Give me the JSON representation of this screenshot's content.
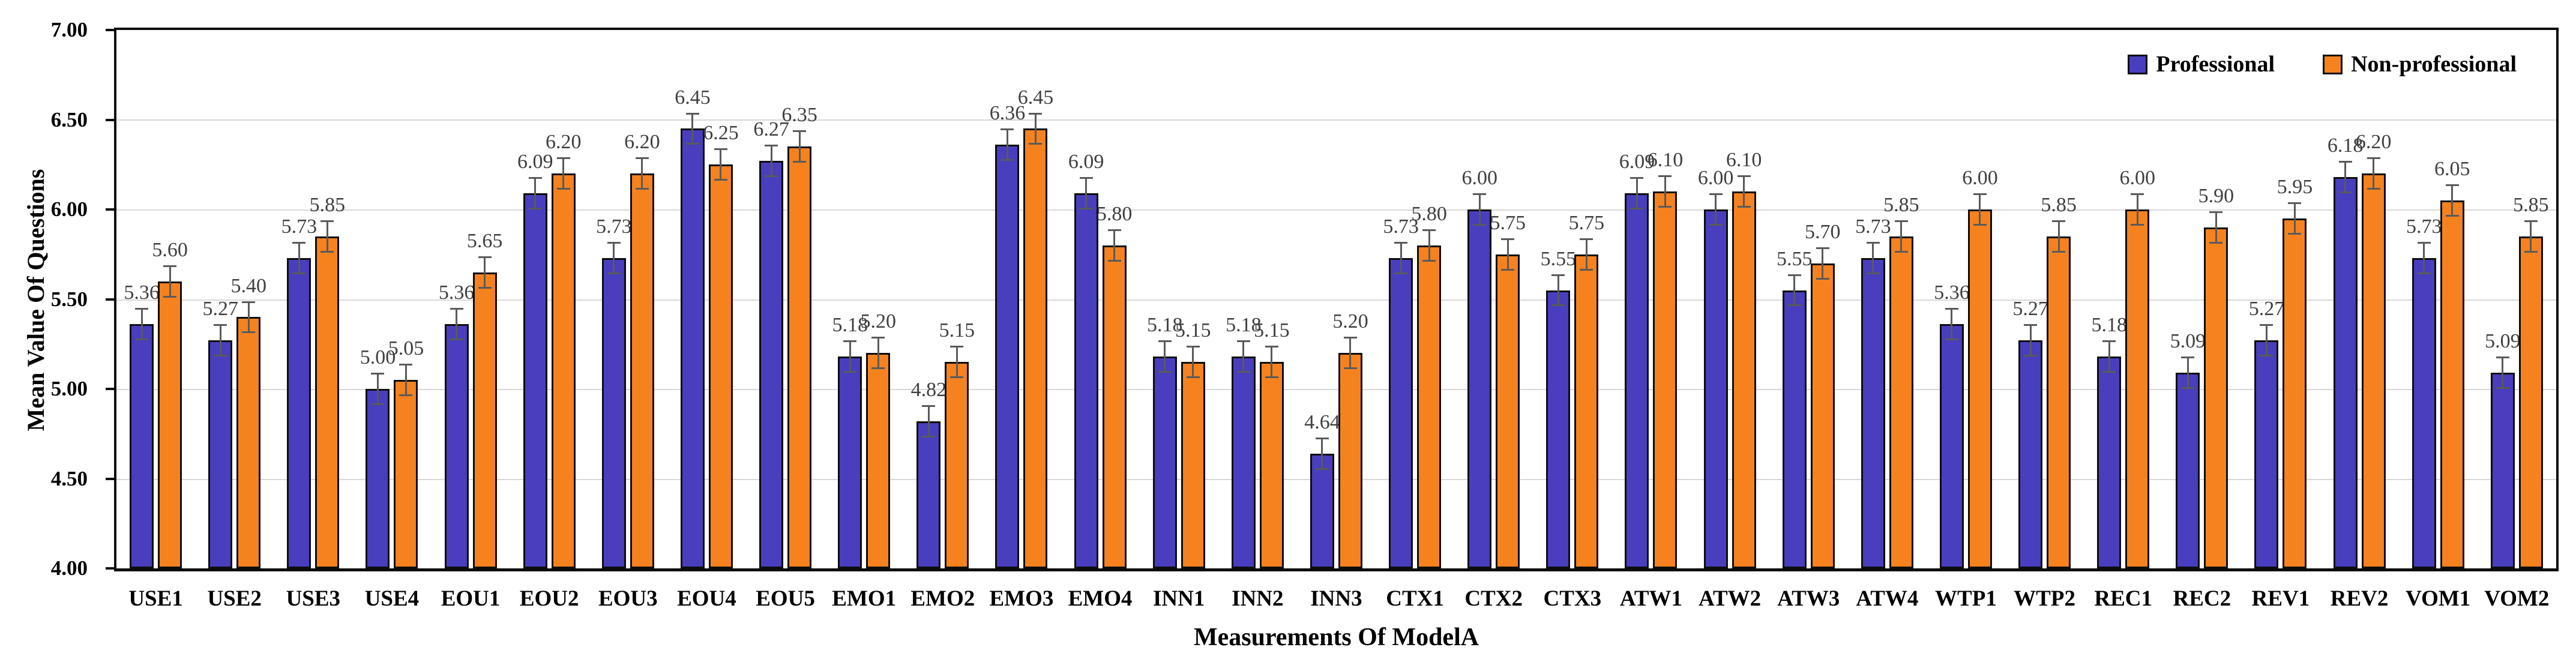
{
  "chart_data": {
    "type": "bar",
    "title": "",
    "xlabel": "Measurements Of ModelA",
    "ylabel": "Mean Value Of Questions",
    "ylim": [
      4.0,
      7.0
    ],
    "ytick_step": 0.5,
    "yticks": [
      7.0,
      6.5,
      6.0,
      5.5,
      5.0,
      4.5,
      4.0
    ],
    "ytick_labels": [
      "7.00",
      "6.50",
      "6.00",
      "5.50",
      "5.00",
      "4.50",
      "4.00"
    ],
    "grid": true,
    "legend_position": "top-right-inside",
    "error_bar_approx": 0.09,
    "categories": [
      "USE1",
      "USE2",
      "USE3",
      "USE4",
      "EOU1",
      "EOU2",
      "EOU3",
      "EOU4",
      "EOU5",
      "EMO1",
      "EMO2",
      "EMO3",
      "EMO4",
      "INN1",
      "INN2",
      "INN3",
      "CTX1",
      "CTX2",
      "CTX3",
      "ATW1",
      "ATW2",
      "ATW3",
      "ATW4",
      "WTP1",
      "WTP2",
      "REC1",
      "REC2",
      "REV1",
      "REV2",
      "VOM1",
      "VOM2"
    ],
    "series": [
      {
        "name": "Professional",
        "color": "#483EBE",
        "values": [
          5.36,
          5.27,
          5.73,
          5.0,
          5.36,
          6.09,
          5.73,
          6.45,
          6.27,
          5.18,
          4.82,
          6.36,
          6.09,
          5.18,
          5.18,
          4.64,
          5.73,
          6.0,
          5.55,
          6.09,
          6.0,
          5.55,
          5.73,
          5.36,
          5.27,
          5.18,
          5.09,
          5.27,
          6.18,
          5.73,
          5.09
        ]
      },
      {
        "name": "Non-professional",
        "color": "#F6821F",
        "values": [
          5.6,
          5.4,
          5.85,
          5.05,
          5.65,
          6.2,
          6.2,
          6.25,
          6.35,
          5.2,
          5.15,
          6.45,
          5.8,
          5.15,
          5.15,
          5.2,
          5.8,
          5.75,
          5.75,
          6.1,
          6.1,
          5.7,
          5.85,
          6.0,
          5.85,
          6.0,
          5.9,
          5.95,
          6.2,
          6.05,
          5.85
        ]
      }
    ]
  },
  "colors": {
    "professional": "#483EBE",
    "non_professional": "#F6821F",
    "bar_border": "#0D0D0D",
    "gridline": "#D8D8D8",
    "error_bar": "#5A5A5A",
    "data_label": "#3F3F3F",
    "axis": "#000000",
    "background": "#FFFFFF"
  }
}
